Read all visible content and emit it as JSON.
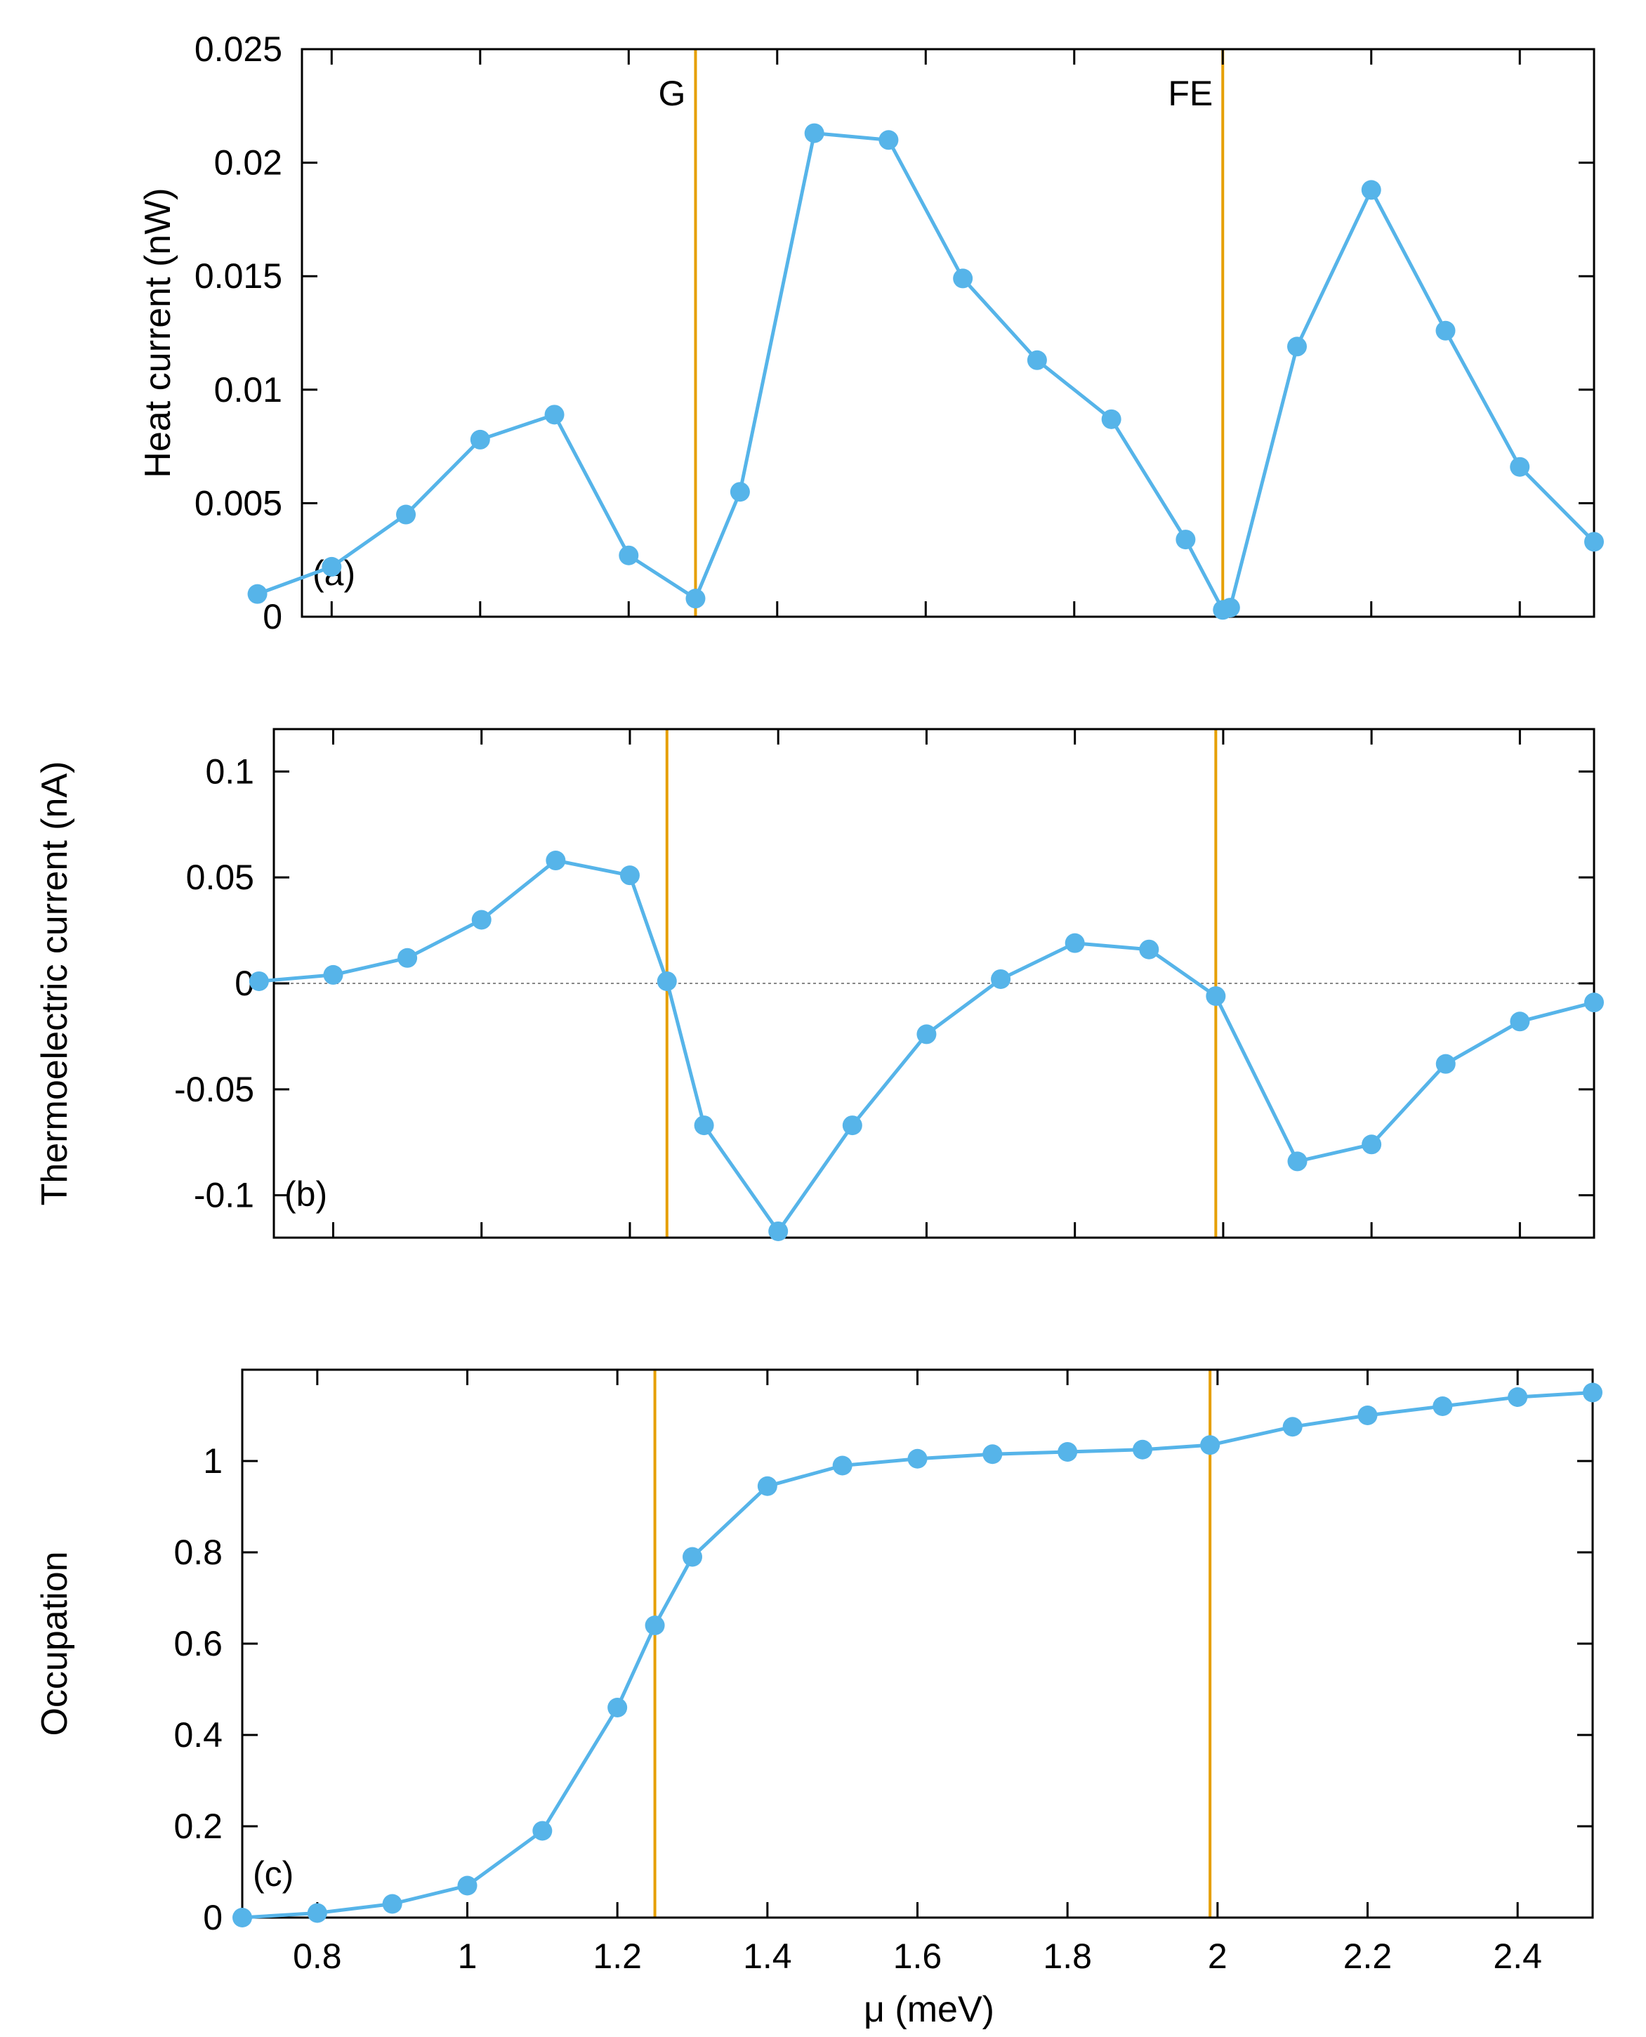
{
  "colors": {
    "series": "#56b4e9",
    "marker_line": "#e69f00",
    "zero_line": "#888888",
    "axis": "#000000"
  },
  "x_axis": {
    "label": "μ (meV)",
    "tick_values": [
      0.8,
      1.0,
      1.2,
      1.4,
      1.6,
      1.8,
      2.0,
      2.2,
      2.4
    ],
    "tick_labels": [
      "0.8",
      "1",
      "1.2",
      "1.4",
      "1.6",
      "1.8",
      "2",
      "2.2",
      "2.4"
    ]
  },
  "chart_data": [
    {
      "type": "line",
      "panel_label": "(a)",
      "ylabel": "Heat current (nW)",
      "xlim": [
        0.7,
        2.5
      ],
      "ylim": [
        0,
        0.025
      ],
      "y_ticks": [
        0,
        0.005,
        0.01,
        0.015,
        0.02,
        0.025
      ],
      "y_tick_labels": [
        "0",
        "0.005",
        "0.01",
        "0.015",
        "0.02",
        "0.025"
      ],
      "show_x_tick_labels": false,
      "zero_line": false,
      "vlines": [
        {
          "x": 1.29,
          "label": "G"
        },
        {
          "x": 2.0,
          "label": "FE"
        }
      ],
      "series": [
        {
          "name": "heat current",
          "x": [
            0.7,
            0.8,
            0.9,
            1.0,
            1.1,
            1.2,
            1.29,
            1.35,
            1.45,
            1.55,
            1.65,
            1.75,
            1.85,
            1.95,
            2.0,
            2.01,
            2.1,
            2.2,
            2.3,
            2.4,
            2.5
          ],
          "values": [
            0.001,
            0.0022,
            0.0045,
            0.0078,
            0.0089,
            0.0027,
            0.0008,
            0.0055,
            0.0213,
            0.021,
            0.0149,
            0.0113,
            0.0087,
            0.0034,
            0.0003,
            0.0004,
            0.0119,
            0.0188,
            0.0126,
            0.0066,
            0.0033
          ]
        }
      ]
    },
    {
      "type": "line",
      "panel_label": "(b)",
      "ylabel": "Thermoelectric current (nA)",
      "xlim": [
        0.7,
        2.5
      ],
      "ylim": [
        -0.12,
        0.12
      ],
      "y_ticks": [
        -0.1,
        -0.05,
        0,
        0.05,
        0.1
      ],
      "y_tick_labels": [
        "-0.1",
        "-0.05",
        "0",
        "0.05",
        "0.1"
      ],
      "show_x_tick_labels": false,
      "zero_line": true,
      "vlines": [
        {
          "x": 1.25,
          "label": ""
        },
        {
          "x": 1.99,
          "label": ""
        }
      ],
      "series": [
        {
          "name": "thermoelectric current",
          "x": [
            0.7,
            0.8,
            0.9,
            1.0,
            1.1,
            1.2,
            1.25,
            1.3,
            1.4,
            1.5,
            1.6,
            1.7,
            1.8,
            1.9,
            1.99,
            2.1,
            2.2,
            2.3,
            2.4,
            2.5
          ],
          "values": [
            0.001,
            0.004,
            0.012,
            0.03,
            0.058,
            0.051,
            0.001,
            -0.067,
            -0.117,
            -0.067,
            -0.024,
            0.002,
            0.019,
            0.016,
            -0.006,
            -0.084,
            -0.076,
            -0.038,
            -0.018,
            -0.009
          ]
        }
      ]
    },
    {
      "type": "line",
      "panel_label": "(c)",
      "ylabel": "Occupation",
      "xlim": [
        0.7,
        2.5
      ],
      "ylim": [
        0,
        1.2
      ],
      "y_ticks": [
        0,
        0.2,
        0.4,
        0.6,
        0.8,
        1.0
      ],
      "y_tick_labels": [
        "0",
        "0.2",
        "0.4",
        "0.6",
        "0.8",
        "1"
      ],
      "show_x_tick_labels": true,
      "zero_line": false,
      "vlines": [
        {
          "x": 1.25,
          "label": ""
        },
        {
          "x": 1.99,
          "label": ""
        }
      ],
      "series": [
        {
          "name": "occupation",
          "x": [
            0.7,
            0.8,
            0.9,
            1.0,
            1.1,
            1.2,
            1.25,
            1.3,
            1.4,
            1.5,
            1.6,
            1.7,
            1.8,
            1.9,
            1.99,
            2.1,
            2.2,
            2.3,
            2.4,
            2.5
          ],
          "values": [
            0.0,
            0.01,
            0.03,
            0.07,
            0.19,
            0.46,
            0.64,
            0.79,
            0.945,
            0.99,
            1.005,
            1.015,
            1.02,
            1.025,
            1.035,
            1.075,
            1.1,
            1.12,
            1.14,
            1.15
          ]
        }
      ]
    }
  ]
}
